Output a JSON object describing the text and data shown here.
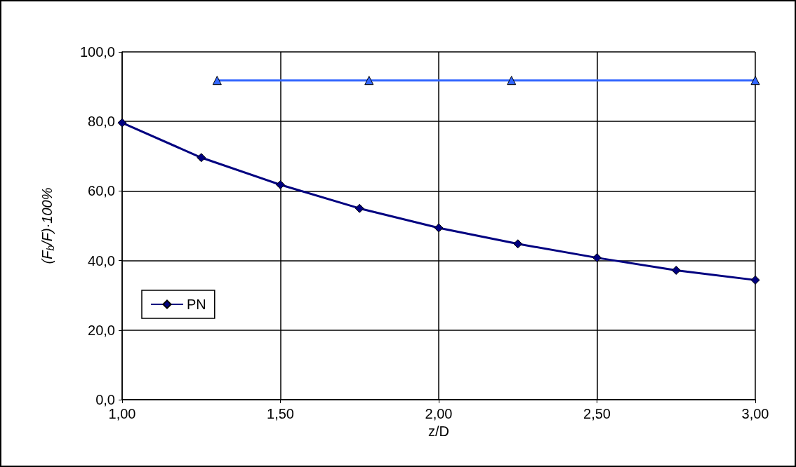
{
  "chart_data": {
    "type": "line",
    "xlabel": "z/D",
    "ylabel": "(F$_{b}$/F)·100%",
    "xlim": [
      1,
      3
    ],
    "xticks": [
      {
        "value": 1,
        "label": "1,00"
      },
      {
        "value": 1.5,
        "label": "1,50"
      },
      {
        "value": 2,
        "label": "2,00"
      },
      {
        "value": 2.5,
        "label": "2,50"
      },
      {
        "value": 3,
        "label": "3,00"
      }
    ],
    "ylim": [
      0,
      100
    ],
    "yticks": [
      {
        "value": 0,
        "label": "0,0"
      },
      {
        "value": 20,
        "label": "20,0"
      },
      {
        "value": 40,
        "label": "40,0"
      },
      {
        "value": 60,
        "label": "60,0"
      },
      {
        "value": 80,
        "label": "80,0"
      },
      {
        "value": 100,
        "label": "100,0"
      }
    ],
    "grid": true,
    "legend": "left",
    "line_style": "solid",
    "series": [
      {
        "name": "PN",
        "color": "#000080",
        "marker": "diamond",
        "x": [
          1,
          1.25,
          1.5,
          1.75,
          2,
          2.25,
          2.5,
          2.75,
          3
        ],
        "values": [
          79.6,
          69.6,
          61.8,
          55,
          49.4,
          44.8,
          40.8,
          37.2,
          34.4
        ]
      },
      {
        "color": "#3366ff",
        "marker": "triangle",
        "x": [
          1.3,
          1.78,
          2.23,
          3
        ],
        "values": [
          91.8,
          91.8,
          91.8,
          91.8
        ]
      }
    ]
  }
}
